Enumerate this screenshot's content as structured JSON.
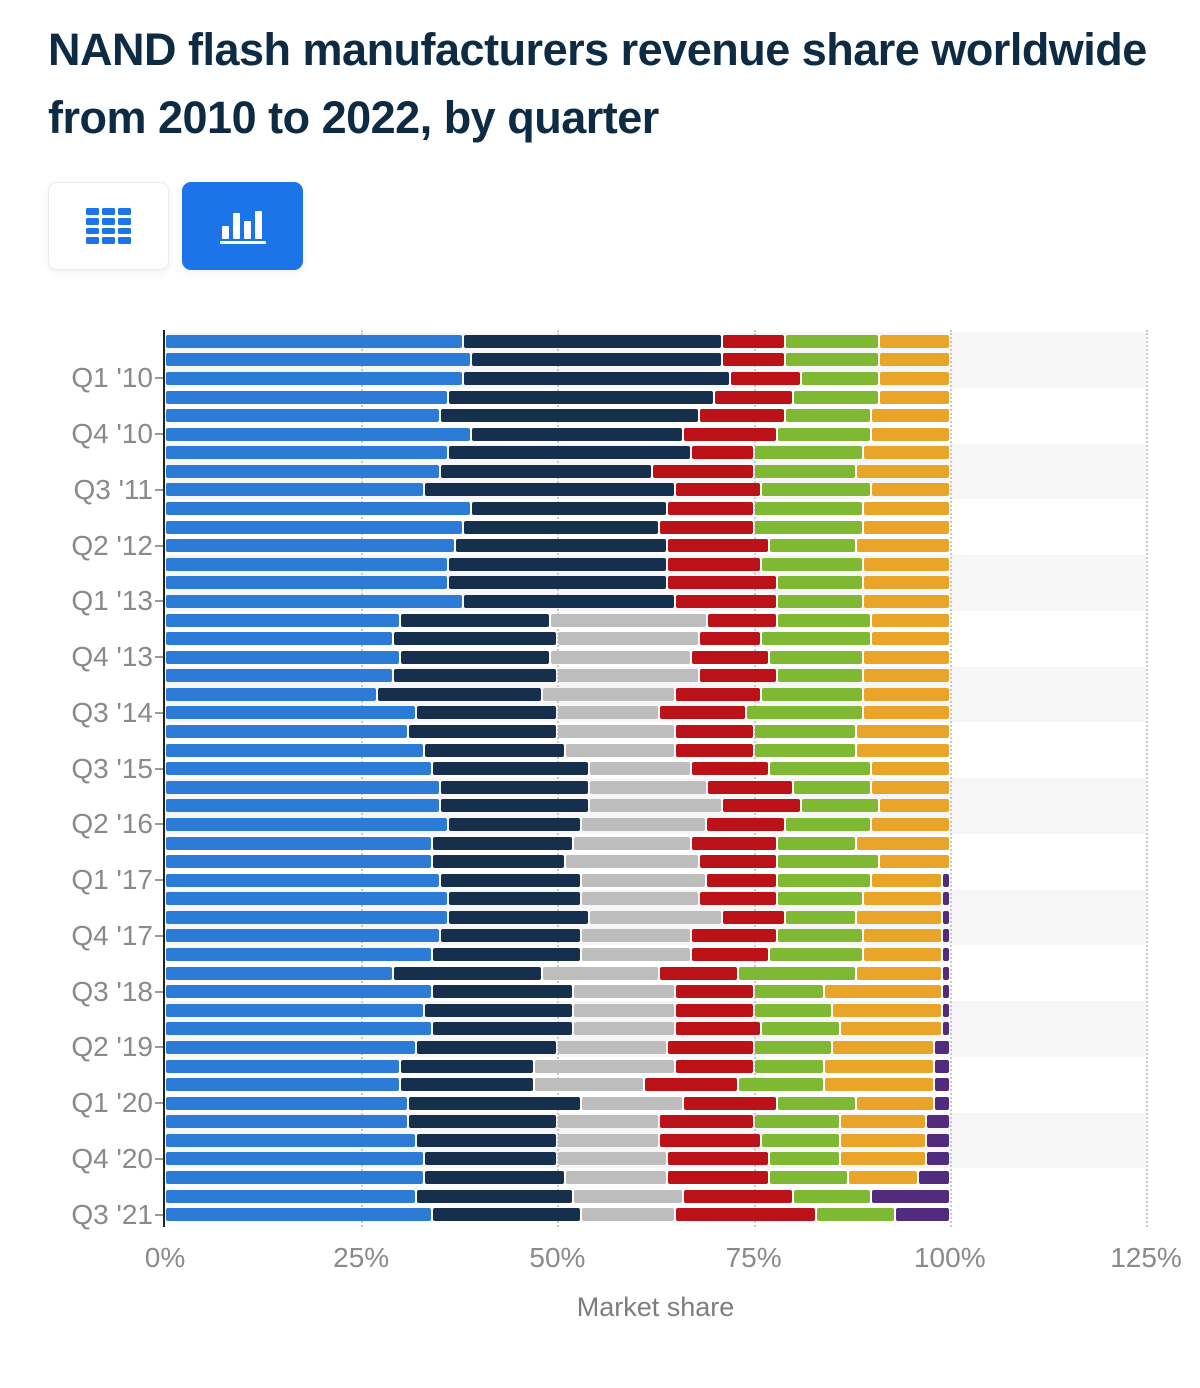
{
  "header": {
    "title": "NAND flash manufacturers revenue share worldwide from 2010 to 2022, by quarter"
  },
  "toolbar": {
    "buttons": [
      {
        "id": "table-view",
        "icon": "table-icon",
        "active": false
      },
      {
        "id": "chart-view",
        "icon": "bar-chart-icon",
        "active": true
      }
    ],
    "accent_color": "#1d74e8"
  },
  "chart_data": {
    "type": "bar",
    "stacked": true,
    "orientation": "horizontal",
    "title": "NAND flash manufacturers revenue share worldwide from 2010 to 2022, by quarter",
    "xlabel": "Market share",
    "ylabel": "",
    "xlim": [
      0,
      125
    ],
    "x_ticks": [
      {
        "pct": 0,
        "label": "0%"
      },
      {
        "pct": 25,
        "label": "25%"
      },
      {
        "pct": 50,
        "label": "50%"
      },
      {
        "pct": 75,
        "label": "75%"
      },
      {
        "pct": 100,
        "label": "100%"
      },
      {
        "pct": 125,
        "label": "125%"
      }
    ],
    "grid": "dotted-vertical",
    "alternate_band_color": "#f6f6f7",
    "axis_label_color": "#8a8a8a",
    "series_order": [
      "blue",
      "navy",
      "gray",
      "red",
      "green",
      "yellow",
      "purple"
    ],
    "series_colors": {
      "blue": "#2c7bd7",
      "navy": "#152f4c",
      "gray": "#bdbdbd",
      "red": "#bb1118",
      "green": "#7fb832",
      "yellow": "#e9a52a",
      "purple": "#512b7d"
    },
    "y_tick_label_interval": 3,
    "rows": [
      {
        "label": "",
        "values": [
          38,
          33,
          0,
          8,
          12,
          9,
          0
        ]
      },
      {
        "label": "",
        "values": [
          39,
          32,
          0,
          8,
          12,
          9,
          0
        ]
      },
      {
        "label": "Q1 '10",
        "values": [
          38,
          34,
          0,
          9,
          10,
          9,
          0
        ]
      },
      {
        "label": "",
        "values": [
          36,
          34,
          0,
          10,
          11,
          9,
          0
        ]
      },
      {
        "label": "",
        "values": [
          35,
          33,
          0,
          11,
          11,
          10,
          0
        ]
      },
      {
        "label": "Q4 '10",
        "values": [
          39,
          27,
          0,
          12,
          12,
          10,
          0
        ]
      },
      {
        "label": "",
        "values": [
          36,
          31,
          0,
          8,
          14,
          11,
          0
        ]
      },
      {
        "label": "",
        "values": [
          35,
          27,
          0,
          13,
          13,
          12,
          0
        ]
      },
      {
        "label": "Q3 '11",
        "values": [
          33,
          32,
          0,
          11,
          14,
          10,
          0
        ]
      },
      {
        "label": "",
        "values": [
          39,
          25,
          0,
          11,
          14,
          11,
          0
        ]
      },
      {
        "label": "",
        "values": [
          38,
          25,
          0,
          12,
          14,
          11,
          0
        ]
      },
      {
        "label": "Q2 '12",
        "values": [
          37,
          27,
          0,
          13,
          11,
          12,
          0
        ]
      },
      {
        "label": "",
        "values": [
          36,
          28,
          0,
          12,
          13,
          11,
          0
        ]
      },
      {
        "label": "",
        "values": [
          36,
          28,
          0,
          14,
          11,
          11,
          0
        ]
      },
      {
        "label": "Q1 '13",
        "values": [
          38,
          27,
          0,
          13,
          11,
          11,
          0
        ]
      },
      {
        "label": "",
        "values": [
          30,
          19,
          20,
          9,
          12,
          10,
          0
        ]
      },
      {
        "label": "",
        "values": [
          29,
          21,
          18,
          8,
          14,
          10,
          0
        ]
      },
      {
        "label": "Q4 '13",
        "values": [
          30,
          19,
          18,
          10,
          12,
          11,
          0
        ]
      },
      {
        "label": "",
        "values": [
          29,
          21,
          18,
          10,
          11,
          11,
          0
        ]
      },
      {
        "label": "",
        "values": [
          27,
          21,
          17,
          11,
          13,
          11,
          0
        ]
      },
      {
        "label": "Q3 '14",
        "values": [
          32,
          18,
          13,
          11,
          15,
          11,
          0
        ]
      },
      {
        "label": "",
        "values": [
          31,
          19,
          15,
          10,
          13,
          12,
          0
        ]
      },
      {
        "label": "",
        "values": [
          33,
          18,
          14,
          10,
          13,
          12,
          0
        ]
      },
      {
        "label": "Q3 '15",
        "values": [
          34,
          20,
          13,
          10,
          13,
          10,
          0
        ]
      },
      {
        "label": "",
        "values": [
          35,
          19,
          15,
          11,
          10,
          10,
          0
        ]
      },
      {
        "label": "",
        "values": [
          35,
          19,
          17,
          10,
          10,
          9,
          0
        ]
      },
      {
        "label": "Q2 '16",
        "values": [
          36,
          17,
          16,
          10,
          11,
          10,
          0
        ]
      },
      {
        "label": "",
        "values": [
          34,
          18,
          15,
          11,
          10,
          12,
          0
        ]
      },
      {
        "label": "",
        "values": [
          34,
          17,
          17,
          10,
          13,
          9,
          0
        ]
      },
      {
        "label": "Q1 '17",
        "values": [
          35,
          18,
          16,
          9,
          12,
          9,
          1
        ]
      },
      {
        "label": "",
        "values": [
          36,
          17,
          15,
          10,
          11,
          10,
          1
        ]
      },
      {
        "label": "",
        "values": [
          36,
          18,
          17,
          8,
          9,
          11,
          1
        ]
      },
      {
        "label": "Q4 '17",
        "values": [
          35,
          18,
          14,
          11,
          11,
          10,
          1
        ]
      },
      {
        "label": "",
        "values": [
          34,
          19,
          14,
          10,
          12,
          10,
          1
        ]
      },
      {
        "label": "",
        "values": [
          29,
          19,
          15,
          10,
          15,
          11,
          1
        ]
      },
      {
        "label": "Q3 '18",
        "values": [
          34,
          18,
          13,
          10,
          9,
          15,
          1
        ]
      },
      {
        "label": "",
        "values": [
          33,
          19,
          13,
          10,
          10,
          14,
          1
        ]
      },
      {
        "label": "",
        "values": [
          34,
          18,
          13,
          11,
          10,
          13,
          1
        ]
      },
      {
        "label": "Q2 '19",
        "values": [
          32,
          18,
          14,
          11,
          10,
          13,
          2
        ]
      },
      {
        "label": "",
        "values": [
          30,
          17,
          18,
          10,
          9,
          14,
          2
        ]
      },
      {
        "label": "",
        "values": [
          30,
          17,
          14,
          12,
          11,
          14,
          2
        ]
      },
      {
        "label": "Q1 '20",
        "values": [
          31,
          22,
          13,
          12,
          10,
          10,
          2
        ]
      },
      {
        "label": "",
        "values": [
          31,
          19,
          13,
          12,
          11,
          11,
          3
        ]
      },
      {
        "label": "",
        "values": [
          32,
          18,
          13,
          13,
          10,
          11,
          3
        ]
      },
      {
        "label": "Q4 '20",
        "values": [
          33,
          17,
          14,
          13,
          9,
          11,
          3
        ]
      },
      {
        "label": "",
        "values": [
          33,
          18,
          13,
          13,
          10,
          9,
          4
        ]
      },
      {
        "label": "",
        "values": [
          32,
          20,
          14,
          14,
          10,
          0,
          10
        ]
      },
      {
        "label": "Q3 '21",
        "values": [
          34,
          19,
          12,
          18,
          10,
          0,
          7
        ]
      }
    ]
  }
}
